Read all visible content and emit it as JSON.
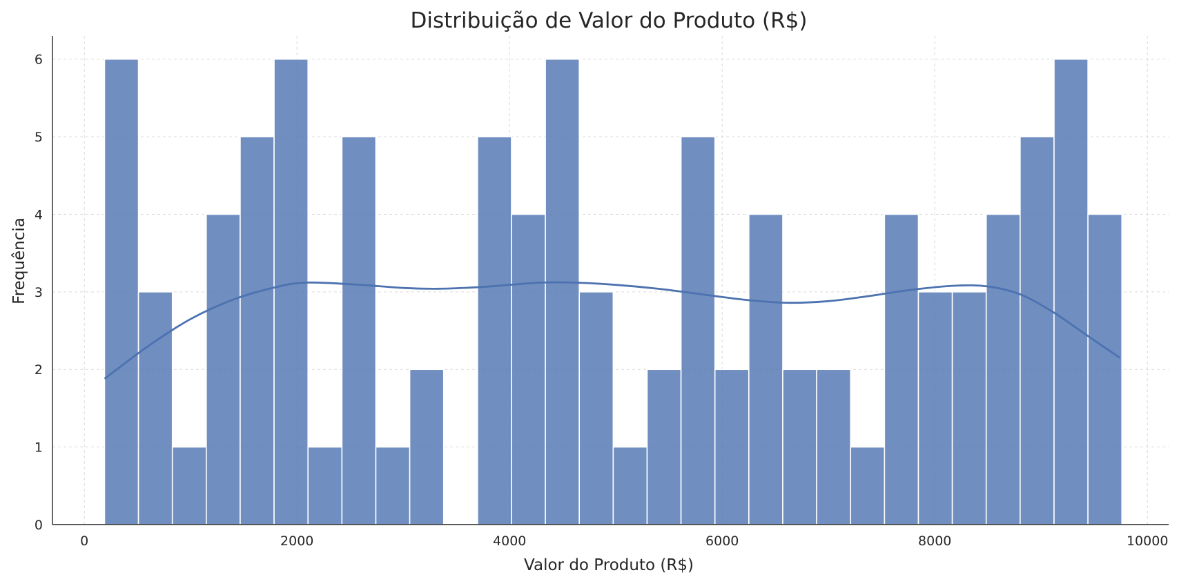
{
  "chart_data": {
    "type": "bar",
    "subtype": "histogram",
    "title": "Distribuição de Valor do Produto (R$)",
    "xlabel": "Valor do Produto (R$)",
    "ylabel": "Frequência",
    "xlim": [
      -300,
      10200
    ],
    "ylim": [
      0,
      6.3
    ],
    "xticks": [
      0,
      2000,
      4000,
      6000,
      8000,
      10000
    ],
    "yticks": [
      0,
      1,
      2,
      3,
      4,
      5,
      6
    ],
    "grid": true,
    "bin_start": 190,
    "bin_width": 319,
    "values": [
      6,
      3,
      1,
      4,
      5,
      6,
      1,
      5,
      1,
      2,
      0,
      5,
      4,
      6,
      3,
      1,
      2,
      5,
      2,
      4,
      2,
      2,
      1,
      4,
      3,
      3,
      4,
      5,
      6,
      4
    ],
    "kde": {
      "x": [
        190,
        600,
        1000,
        1400,
        1800,
        2100,
        2600,
        3000,
        3300,
        3700,
        4000,
        4300,
        4600,
        5000,
        5400,
        5800,
        6200,
        6600,
        7000,
        7400,
        7800,
        8200,
        8500,
        8800,
        9100,
        9400,
        9740
      ],
      "y": [
        1.88,
        2.3,
        2.65,
        2.9,
        3.06,
        3.12,
        3.09,
        3.05,
        3.04,
        3.06,
        3.09,
        3.12,
        3.12,
        3.09,
        3.04,
        2.97,
        2.9,
        2.86,
        2.88,
        2.95,
        3.03,
        3.08,
        3.07,
        2.97,
        2.75,
        2.47,
        2.15
      ]
    },
    "colors": {
      "bar": "#4c72b0",
      "bar_opacity": 0.8,
      "kde": "#4c72b0"
    }
  }
}
